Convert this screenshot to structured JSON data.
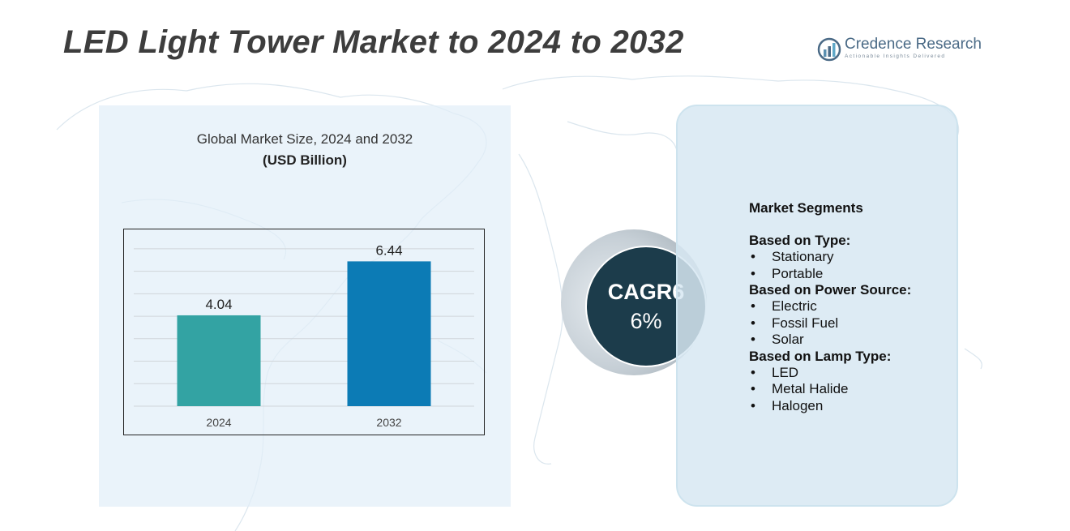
{
  "title": "LED Light Tower Market to 2024 to 2032",
  "brand": {
    "name": "Credence Research",
    "tagline": "Actionable Insights Delivered",
    "icon": "bar-chart-logo-icon"
  },
  "chart_data": {
    "type": "bar",
    "title": "Global Market Size,  2024 and 2032",
    "subtitle": "(USD Billion)",
    "categories": [
      "2024",
      "2032"
    ],
    "values": [
      4.04,
      6.44
    ],
    "value_labels": [
      "4.04",
      "6.44"
    ],
    "colors": [
      "#33a3a3",
      "#0c7bb5"
    ],
    "ylim": [
      0,
      7.5
    ],
    "grid": true,
    "legend": "none"
  },
  "cagr": {
    "line1": "CAGR6",
    "line2": "6%"
  },
  "segments": {
    "title": "Market Segments",
    "groups": [
      {
        "label": "Based on Type:",
        "items": [
          "Stationary",
          "Portable"
        ]
      },
      {
        "label": "Based on Power Source:",
        "items": [
          "Electric",
          "Fossil Fuel",
          "Solar"
        ]
      },
      {
        "label": "Based on Lamp Type:",
        "items": [
          "LED",
          "Metal Halide",
          "Halogen"
        ]
      }
    ]
  },
  "colors": {
    "title_text": "#3d3d3d",
    "cagr_circle": "#1c3c4b",
    "chart_panel": "#e2eef8",
    "segment_panel": "#d7e8f2"
  }
}
